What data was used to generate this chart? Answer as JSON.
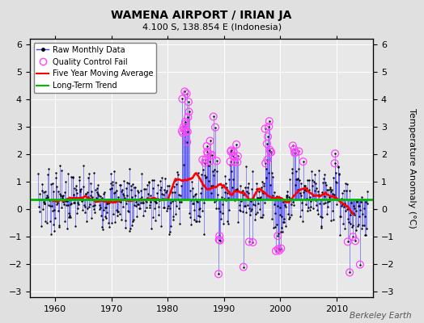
{
  "title": "WAMENA AIRPORT / IRIAN JA",
  "subtitle": "4.100 S, 138.854 E (Indonesia)",
  "ylabel": "Temperature Anomaly (°C)",
  "credit": "Berkeley Earth",
  "xlim": [
    1955.5,
    2016.5
  ],
  "ylim": [
    -3.2,
    6.2
  ],
  "yticks": [
    -3,
    -2,
    -1,
    0,
    1,
    2,
    3,
    4,
    5,
    6
  ],
  "xticks": [
    1960,
    1970,
    1980,
    1990,
    2000,
    2010
  ],
  "bg_color": "#e0e0e0",
  "plot_bg": "#e8e8e8",
  "grid_color": "#ffffff",
  "dot_color": "#000000",
  "stem_color": "#4444ff",
  "qc_color": "#ff44ff",
  "mavg_color": "#ff0000",
  "trend_color": "#00bb00",
  "trend_value": 0.35,
  "seed": 7
}
